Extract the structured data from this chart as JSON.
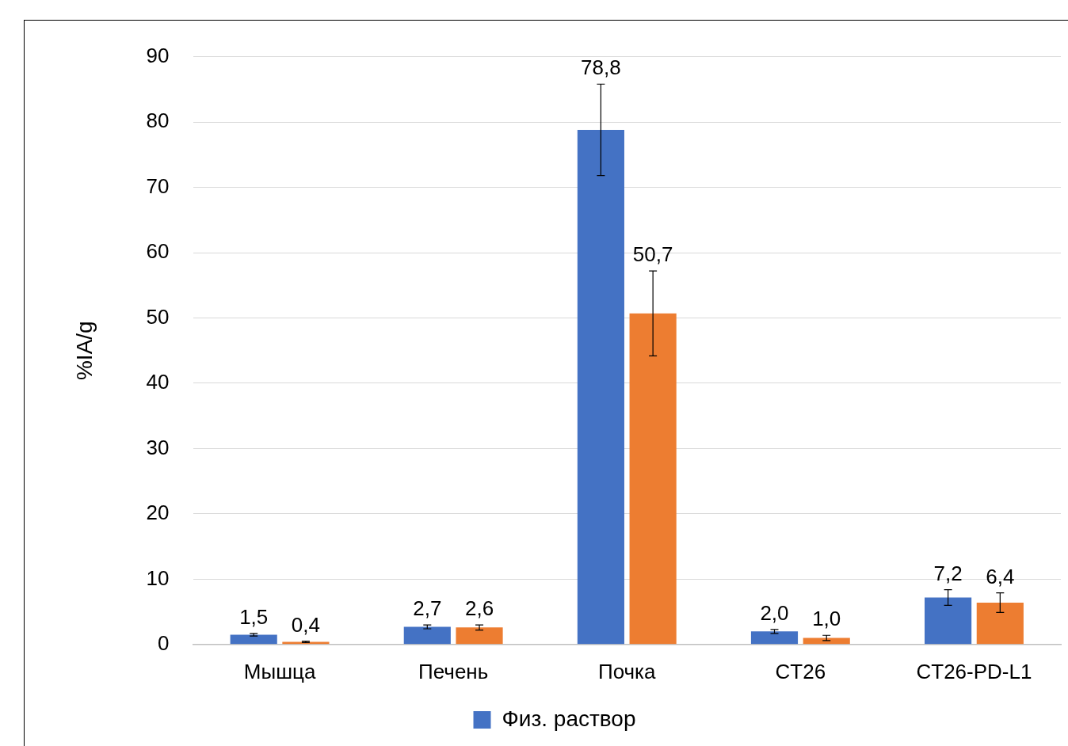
{
  "chart_data": {
    "type": "bar",
    "ylabel": "%IA/g",
    "categories": [
      "Мышца",
      "Печень",
      "Почка",
      "CT26",
      "CT26-PD-L1"
    ],
    "series": [
      {
        "name": "Физ. раствор",
        "color": "#4472c4",
        "values": [
          1.5,
          2.7,
          78.8,
          2.0,
          7.2
        ],
        "errors": [
          0.2,
          0.3,
          7,
          0.3,
          1.2
        ],
        "value_labels": [
          "1,5",
          "2,7",
          "78,8",
          "2,0",
          "7,2"
        ]
      },
      {
        "color": "#ed7d31",
        "values": [
          0.4,
          2.6,
          50.7,
          1.0,
          6.4
        ],
        "errors": [
          0.1,
          0.4,
          6.5,
          0.4,
          1.5
        ],
        "value_labels": [
          "0,4",
          "2,6",
          "50,7",
          "1,0",
          "6,4"
        ]
      }
    ],
    "ylim": [
      0,
      90
    ],
    "yticks": [
      0,
      10,
      20,
      30,
      40,
      50,
      60,
      70,
      80,
      90
    ],
    "grid": "y",
    "legend": "bottom"
  }
}
